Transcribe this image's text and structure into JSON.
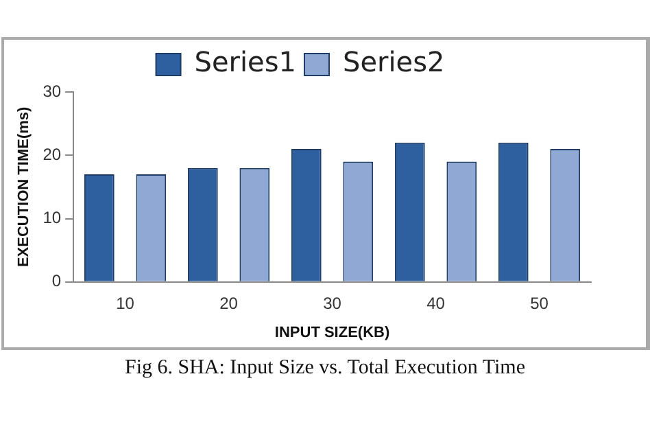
{
  "chart_data": {
    "type": "bar",
    "xlabel": "INPUT SIZE(KB)",
    "ylabel": "EXECUTION TIME(ms)",
    "categories": [
      "10",
      "20",
      "30",
      "40",
      "50"
    ],
    "series": [
      {
        "name": "Series1",
        "color": "#2e5f9e",
        "values": [
          17,
          18,
          21,
          22,
          22
        ]
      },
      {
        "name": "Series2",
        "color": "#8fa9d4",
        "values": [
          17,
          18,
          19,
          19,
          21
        ]
      }
    ],
    "ylim": [
      0,
      30
    ],
    "yticks": [
      0,
      10,
      20,
      30
    ],
    "grid": false,
    "legend": "top",
    "annotations": [
      "Fig 6. SHA: Input Size vs. Total Execution Time"
    ]
  }
}
